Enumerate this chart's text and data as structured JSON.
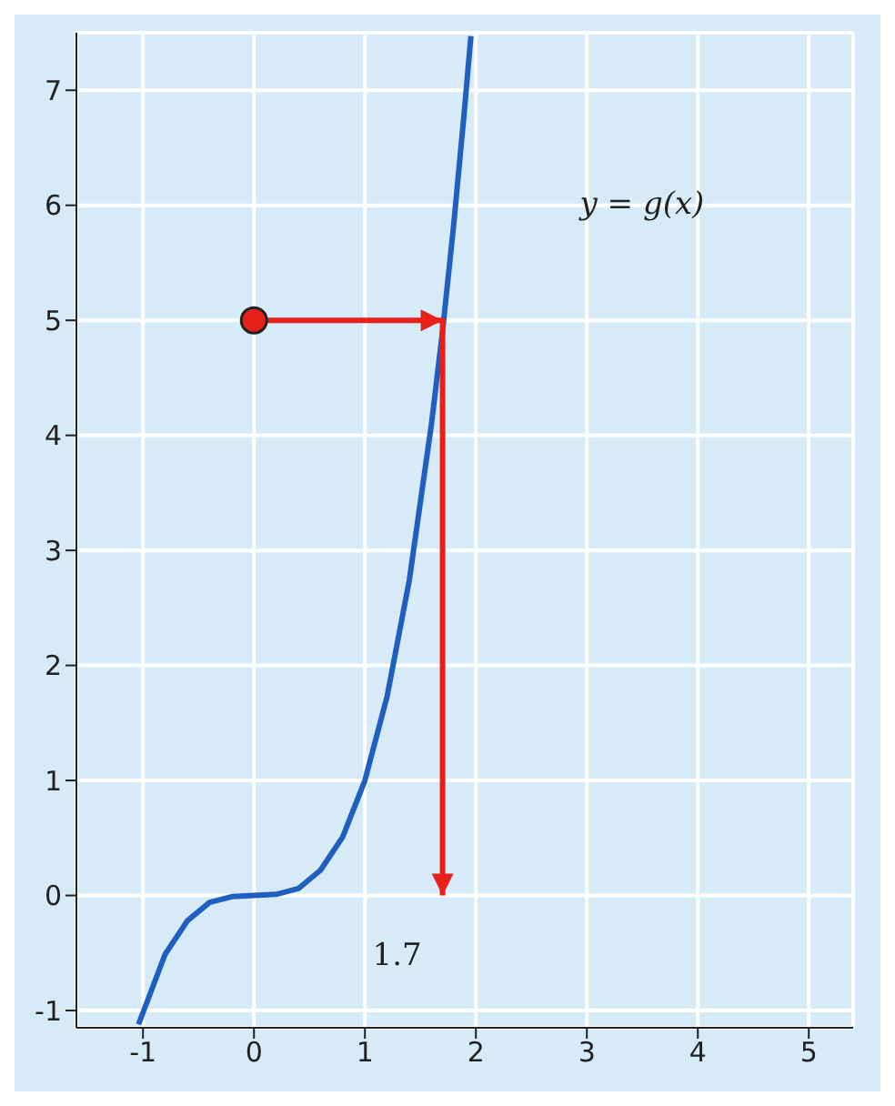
{
  "chart_data": {
    "type": "line",
    "xlim": [
      -1.6,
      5.4
    ],
    "ylim": [
      -1.15,
      7.5
    ],
    "xticks": [
      -1,
      0,
      1,
      2,
      3,
      4,
      5
    ],
    "yticks": [
      -1,
      0,
      1,
      2,
      3,
      4,
      5,
      6,
      7
    ],
    "grid": true,
    "marker": "none",
    "series": [
      {
        "color": "#1f5fbf",
        "x": [
          -1.04,
          -0.8,
          -0.6,
          -0.4,
          -0.2,
          0,
          0.2,
          0.4,
          0.6,
          0.8,
          1,
          1.2,
          1.4,
          1.6,
          1.7,
          1.8,
          1.9,
          1.955
        ],
        "values": [
          -1.12,
          -0.51,
          -0.22,
          -0.06,
          -0.01,
          0,
          0.01,
          0.06,
          0.22,
          0.51,
          1,
          1.73,
          2.74,
          4.1,
          4.91,
          5.83,
          6.86,
          7.47
        ]
      },
      {
        "color": "#e8201a",
        "x": [
          0,
          1.7,
          1.7
        ],
        "values": [
          5,
          5,
          0
        ]
      },
      {
        "type": "scatter",
        "color": "#e8201a",
        "marker": "circle",
        "x": [
          0
        ],
        "values": [
          5
        ]
      }
    ],
    "annotations": [
      "y = g(x)",
      "1.7"
    ]
  }
}
